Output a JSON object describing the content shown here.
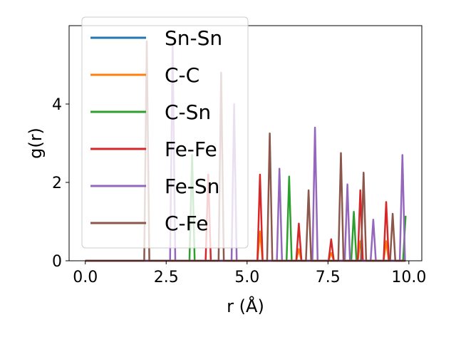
{
  "chart_data": {
    "type": "line",
    "title": "",
    "xlabel": "r (Å)",
    "ylabel": "g(r)",
    "xlim": [
      -0.5,
      10.4
    ],
    "ylim": [
      0,
      6.0
    ],
    "xticks": [
      0.0,
      2.5,
      5.0,
      7.5,
      10.0
    ],
    "xtick_labels": [
      "0.0",
      "2.5",
      "5.0",
      "7.5",
      "10.0"
    ],
    "yticks": [
      0,
      2,
      4
    ],
    "ytick_labels": [
      "0",
      "2",
      "4"
    ],
    "grid": false,
    "legend_position": "upper-left",
    "series": [
      {
        "name": "Sn-Sn",
        "color": "#1f77b4",
        "peaks": []
      },
      {
        "name": "C-C",
        "color": "#ff7f0e",
        "peaks": [
          [
            5.4,
            0.75
          ],
          [
            6.6,
            0.3
          ],
          [
            7.6,
            0.2
          ],
          [
            8.5,
            0.5
          ],
          [
            9.3,
            0.5
          ]
        ]
      },
      {
        "name": "C-Sn",
        "color": "#2ca02c",
        "peaks": [
          [
            3.3,
            2.7
          ],
          [
            6.3,
            2.15
          ],
          [
            8.3,
            1.25
          ],
          [
            9.9,
            1.15
          ]
        ]
      },
      {
        "name": "Fe-Fe",
        "color": "#d62728",
        "peaks": [
          [
            3.8,
            2.2
          ],
          [
            5.4,
            2.2
          ],
          [
            6.6,
            0.95
          ],
          [
            7.6,
            0.55
          ],
          [
            8.5,
            1.8
          ],
          [
            9.3,
            1.5
          ]
        ]
      },
      {
        "name": "Fe-Sn",
        "color": "#9467bd",
        "peaks": [
          [
            2.7,
            5.5
          ],
          [
            4.6,
            4.0
          ],
          [
            6.0,
            2.35
          ],
          [
            7.1,
            3.4
          ],
          [
            8.1,
            1.95
          ],
          [
            8.9,
            1.05
          ],
          [
            9.8,
            2.7
          ]
        ]
      },
      {
        "name": "C-Fe",
        "color": "#8c564b",
        "peaks": [
          [
            1.9,
            5.6
          ],
          [
            4.2,
            4.8
          ],
          [
            5.7,
            3.25
          ],
          [
            6.9,
            1.8
          ],
          [
            7.9,
            2.75
          ],
          [
            8.6,
            2.25
          ],
          [
            9.5,
            1.2
          ]
        ]
      }
    ]
  }
}
